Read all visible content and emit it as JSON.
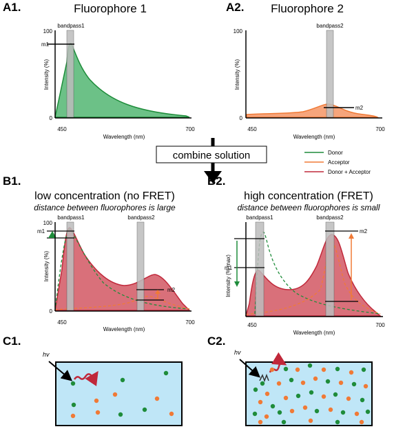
{
  "colors": {
    "donor": "#1e8c3a",
    "acceptor": "#f07a36",
    "combined": "#c0283a",
    "combined_fill": "#d9707a",
    "donor_fill": "#6cc187",
    "acceptor_fill": "#f6a57c",
    "bandpass": "#bdbdbd",
    "cell_fill": "#bfe6f7"
  },
  "panels": {
    "a1": {
      "label": "A1.",
      "title": "Fluorophore 1"
    },
    "a2": {
      "label": "A2.",
      "title": "Fluorophore 2"
    },
    "b1": {
      "label": "B1.",
      "title": "low concentration (no FRET)",
      "subtitle": "distance between fluorophores is large"
    },
    "b2": {
      "label": "B2.",
      "title": "high concentration (FRET)",
      "subtitle": "distance between fluorophores is small"
    },
    "c1": {
      "label": "C1.",
      "hv": "hv"
    },
    "c2": {
      "label": "C2.",
      "hv": "hv"
    }
  },
  "center": {
    "combine_label": "combine solution"
  },
  "legend": {
    "items": [
      {
        "label": "Donor",
        "color": "#1e8c3a"
      },
      {
        "label": "Acceptor",
        "color": "#f07a36"
      },
      {
        "label": "Donor + Acceptor",
        "color": "#c0283a"
      }
    ]
  },
  "axes": {
    "xlabel": "Wavelength (nm)",
    "ylabel": "Intensity (%)",
    "ylabel_b2": "Intensity (% max)",
    "x_start": "450",
    "x_end": "700",
    "y_top": "100",
    "y_zero": "0"
  },
  "markers": {
    "bandpass1": "bandpass1",
    "bandpass2": "bandpass2",
    "m1": "m1",
    "m2": "m2"
  }
}
